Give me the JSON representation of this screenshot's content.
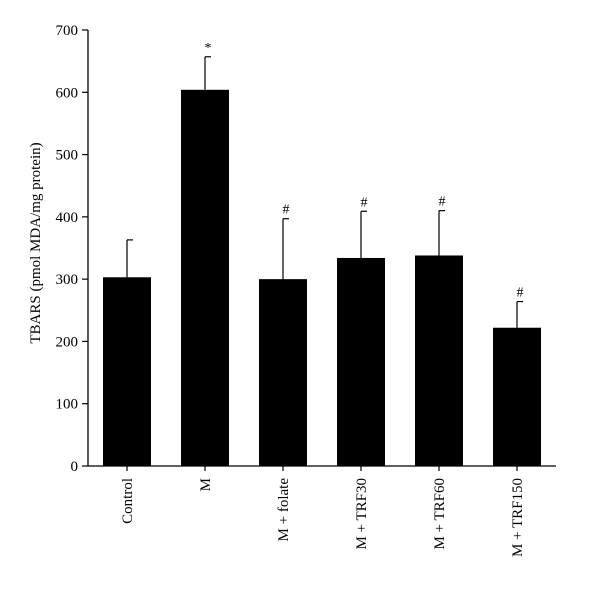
{
  "chart_data": {
    "type": "bar",
    "title": "",
    "xlabel": "",
    "ylabel": "TBARS (pmol MDA/mg protein)",
    "ylim": [
      0,
      700
    ],
    "yticks": [
      0,
      100,
      200,
      300,
      400,
      500,
      600,
      700
    ],
    "categories": [
      "Control",
      "M",
      "M + folate",
      "M + TRF30",
      "M + TRF60",
      "M + TRF150"
    ],
    "values": [
      303,
      604,
      300,
      334,
      338,
      222
    ],
    "error_plus": [
      60,
      53,
      97,
      75,
      72,
      42
    ],
    "significance": [
      "",
      "*",
      "#",
      "#",
      "#",
      "#"
    ],
    "bar_color": "#000000",
    "grid": false,
    "legend": "none"
  }
}
